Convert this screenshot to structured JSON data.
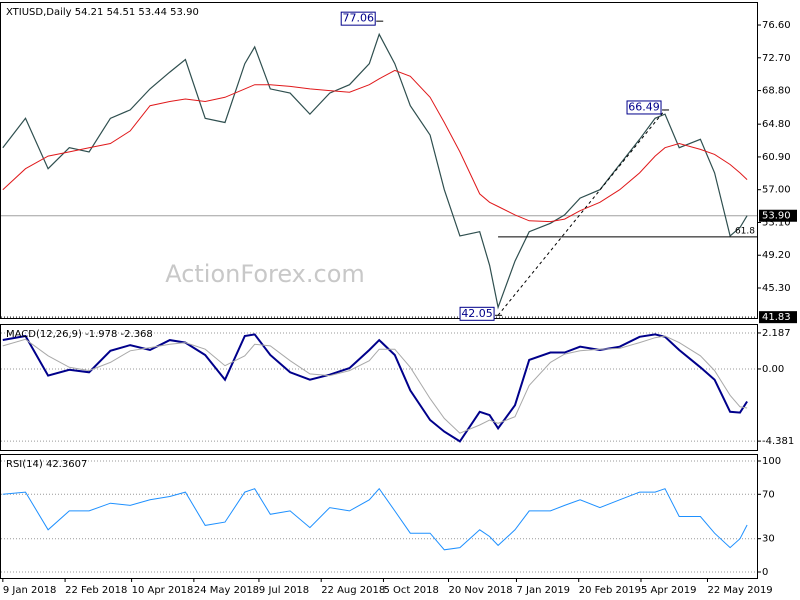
{
  "chart_data": [
    {
      "type": "line",
      "title": "XTIUSD,Daily  54.21 54.51 53.44 53.90",
      "watermark": "ActionForex.com",
      "x": [
        "9 Jan 2018",
        "25 Jan 2018",
        "10 Feb 2018",
        "25 Feb 2018",
        "11 Mar 2018",
        "26 Mar 2018",
        "9 Apr 2018",
        "23 Apr 2018",
        "7 May 2018",
        "18 May 2018",
        "1 Jun 2018",
        "15 Jun 2018",
        "29 Jun 2018",
        "6 Jul 2018",
        "17 Jul 2018",
        "31 Jul 2018",
        "14 Aug 2018",
        "28 Aug 2018",
        "11 Sep 2018",
        "25 Sep 2018",
        "2 Oct 2018",
        "13 Oct 2018",
        "24 Oct 2018",
        "7 Nov 2018",
        "17 Nov 2018",
        "28 Nov 2018",
        "12 Dec 2018",
        "19 Dec 2018",
        "25 Dec 2018",
        "6 Jan 2019",
        "16 Jan 2019",
        "31 Jan 2019",
        "10 Feb 2019",
        "21 Feb 2019",
        "7 Mar 2019",
        "21 Mar 2019",
        "4 Apr 2019",
        "15 Apr 2019",
        "22 Apr 2019",
        "2 May 2019",
        "17 May 2019",
        "27 May 2019",
        "7 Jun 2019",
        "14 Jun 2019",
        "19 Jun 2019"
      ],
      "xlim": [
        "7 Jan 2018",
        "26 Jun 2019"
      ],
      "ylim": [
        41.73,
        79.34
      ],
      "yticks": [
        {
          "value": 76.6,
          "label": "76.60"
        },
        {
          "value": 72.7,
          "label": "72.70"
        },
        {
          "value": 68.8,
          "label": "68.80"
        },
        {
          "value": 64.8,
          "label": "64.80"
        },
        {
          "value": 60.9,
          "label": "60.90"
        },
        {
          "value": 57.0,
          "label": "57.00"
        },
        {
          "value": 53.1,
          "label": "53.10"
        },
        {
          "value": 49.2,
          "label": "49.20"
        },
        {
          "value": 45.3,
          "label": "45.30"
        }
      ],
      "grid": false,
      "series": [
        {
          "color": "#2f4f4f",
          "width": 1.2,
          "values": [
            62.0,
            65.5,
            59.5,
            62.0,
            61.5,
            65.5,
            66.5,
            69.0,
            71.0,
            72.5,
            65.5,
            65.0,
            72.0,
            74.0,
            69.0,
            68.5,
            66.0,
            68.5,
            69.5,
            72.0,
            75.5,
            72.0,
            67.0,
            63.5,
            57.0,
            51.5,
            52.0,
            48.0,
            43.0,
            48.5,
            52.0,
            53.0,
            54.0,
            56.0,
            57.0,
            60.0,
            63.0,
            65.5,
            66.0,
            62.0,
            63.0,
            59.0,
            51.5,
            52.5,
            53.9
          ]
        },
        {
          "color": "#e0191b",
          "width": 1,
          "values": [
            57.0,
            59.5,
            61.0,
            61.5,
            62.0,
            62.5,
            64.0,
            67.0,
            67.5,
            67.8,
            67.5,
            68.0,
            69.0,
            69.5,
            69.5,
            69.3,
            69.0,
            68.8,
            68.6,
            69.5,
            70.2,
            71.2,
            70.5,
            68.0,
            65.0,
            61.5,
            56.5,
            55.5,
            55.0,
            54.0,
            53.3,
            53.2,
            53.5,
            54.5,
            55.5,
            57.0,
            59.0,
            61.0,
            62.0,
            62.5,
            61.8,
            61.2,
            60.0,
            59.0,
            58.2
          ]
        }
      ],
      "annotations": [
        {
          "value": 77.06,
          "x": "2 Oct 2018",
          "side": "left"
        },
        {
          "value": 66.49,
          "x": "22 Apr 2019",
          "side": "left"
        },
        {
          "value": 42.05,
          "x": "25 Dec 2018",
          "side": "left"
        }
      ],
      "last": {
        "value": 53.9,
        "label": "53.90"
      },
      "level": {
        "value": 41.83
      },
      "fib": {
        "value": 51.39,
        "label": "61.8"
      }
    },
    {
      "type": "line",
      "title": "MACD(12,26,9) -1.978 -2.368",
      "ylim": [
        -4.92,
        2.73
      ],
      "yticks": [
        2.187,
        {
          "value": 0,
          "label": "0.00"
        },
        -4.381
      ],
      "grid": "dotted",
      "series": [
        {
          "color": "#00008b",
          "width": 2,
          "values": [
            1.76,
            2.0,
            -0.4,
            -0.05,
            -0.2,
            1.1,
            1.45,
            1.15,
            1.75,
            1.6,
            0.85,
            -0.65,
            2.0,
            2.1,
            0.85,
            -0.2,
            -0.65,
            -0.35,
            0.05,
            1.15,
            1.75,
            0.85,
            -1.3,
            -3.1,
            -3.8,
            -4.4,
            -2.6,
            -2.8,
            -3.6,
            -2.2,
            0.55,
            1.0,
            1.0,
            1.35,
            1.15,
            1.35,
            1.95,
            2.1,
            1.95,
            1.15,
            0.1,
            -0.65,
            -2.6,
            -2.65,
            -1.978
          ]
        },
        {
          "color": "#a9a9a9",
          "width": 1,
          "values": [
            1.4,
            1.8,
            0.8,
            0.1,
            -0.1,
            0.4,
            1.1,
            1.3,
            1.5,
            1.6,
            1.2,
            0.2,
            0.8,
            1.5,
            1.4,
            0.5,
            -0.3,
            -0.4,
            -0.1,
            0.5,
            1.2,
            1.2,
            0.1,
            -1.8,
            -3.0,
            -3.9,
            -3.4,
            -3.1,
            -3.3,
            -2.9,
            -1.0,
            0.4,
            0.9,
            1.1,
            1.2,
            1.25,
            1.6,
            1.9,
            2.0,
            1.6,
            0.8,
            -0.1,
            -1.6,
            -2.3,
            -2.368
          ]
        }
      ]
    },
    {
      "type": "line",
      "title": "RSI(14) 42.3607",
      "ylim": [
        -5.4,
        106.3
      ],
      "yticks": [
        100,
        70,
        30,
        0
      ],
      "grid": "dotted",
      "series": [
        {
          "color": "#1e90ff",
          "width": 1,
          "values": [
            70,
            72,
            38,
            55,
            55,
            62,
            60,
            65,
            68,
            72,
            42,
            45,
            72,
            75,
            52,
            55,
            40,
            58,
            55,
            65,
            75,
            55,
            35,
            35,
            20,
            22,
            38,
            32,
            24,
            38,
            55,
            55,
            60,
            65,
            58,
            65,
            72,
            72,
            75,
            50,
            50,
            35,
            22,
            30,
            42.3607
          ]
        }
      ],
      "xticks": [
        "9 Jan 2018",
        "22 Feb 2018",
        "10 Apr 2018",
        "24 May 2018",
        "9 Jul 2018",
        "22 Aug 2018",
        "5 Oct 2018",
        "20 Nov 2018",
        "7 Jan 2019",
        "20 Feb 2019",
        "5 Apr 2019",
        "22 May 2019"
      ]
    }
  ]
}
